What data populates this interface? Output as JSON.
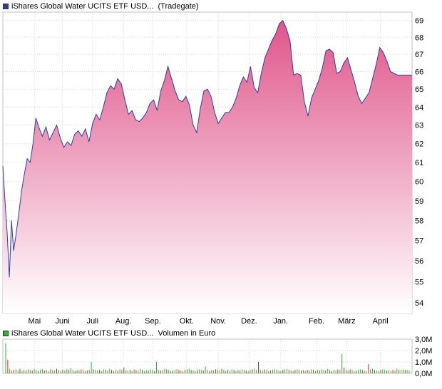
{
  "price_chart": {
    "legend_name": "iShares Global Water UCITS ETF USD...",
    "legend_source": "(Tradegate)",
    "series_color": "#2a3fa7",
    "fill_top_color": "#e0558a",
    "fill_bottom_color": "#ffffff"
  },
  "volume_chart": {
    "legend_name": "iShares Global Water UCITS ETF USD...",
    "legend_label": "Volumen in Euro",
    "up_color": "#2ab52a",
    "down_color": "#e02020"
  },
  "chart_data": [
    {
      "type": "area",
      "title": "",
      "series": [
        {
          "name": "iShares Global Water UCITS ETF USD...",
          "x": [
            0,
            3,
            6,
            9,
            12,
            15,
            18,
            22,
            26,
            30,
            34,
            38,
            42,
            46,
            50,
            55,
            60,
            65,
            70,
            75,
            80,
            85,
            90,
            95,
            100,
            105,
            110,
            115,
            120,
            125,
            130,
            135,
            140,
            145,
            150,
            155,
            160,
            165,
            170,
            175,
            180,
            185,
            190,
            195,
            200,
            205,
            210,
            215,
            220,
            225,
            230,
            235,
            240,
            245,
            250,
            255,
            260,
            265,
            270,
            275,
            280,
            285,
            290,
            295,
            300,
            305,
            310,
            315,
            320,
            325,
            330,
            335,
            340,
            345,
            350,
            355,
            360,
            365,
            370,
            375,
            380,
            385,
            390,
            395,
            400,
            405,
            410,
            415,
            420,
            425,
            430,
            435,
            440,
            445,
            450,
            455,
            460,
            465,
            470,
            475,
            480,
            485,
            490,
            495,
            500,
            505,
            510,
            515,
            520,
            525,
            530,
            535,
            540,
            545,
            550,
            555,
            560,
            565,
            570
          ],
          "values": [
            60.8,
            59.0,
            57.4,
            55.2,
            58.0,
            56.5,
            57.2,
            58.3,
            59.5,
            60.4,
            61.2,
            61.0,
            62.0,
            63.4,
            62.9,
            62.4,
            62.9,
            62.2,
            62.6,
            63.0,
            62.3,
            61.8,
            62.1,
            61.9,
            62.5,
            62.7,
            62.4,
            62.8,
            62.1,
            63.1,
            63.6,
            63.3,
            64.0,
            64.8,
            65.2,
            65.0,
            65.6,
            65.3,
            64.4,
            63.6,
            63.8,
            63.3,
            63.2,
            63.4,
            63.7,
            64.2,
            64.4,
            63.8,
            64.9,
            65.5,
            66.3,
            65.6,
            64.9,
            64.4,
            64.3,
            64.6,
            64.1,
            63.0,
            62.6,
            63.9,
            64.9,
            65.0,
            64.6,
            63.7,
            63.1,
            63.4,
            63.7,
            63.7,
            64.0,
            64.5,
            65.2,
            65.7,
            65.4,
            66.3,
            65.1,
            64.8,
            65.9,
            66.8,
            67.3,
            67.8,
            68.2,
            68.8,
            69.0,
            68.5,
            67.8,
            65.8,
            65.9,
            65.8,
            64.3,
            63.5,
            64.5,
            65.0,
            65.5,
            66.2,
            67.2,
            67.3,
            67.1,
            65.9,
            66.0,
            66.5,
            66.8,
            66.1,
            65.4,
            64.6,
            64.2,
            64.5,
            64.8,
            65.6,
            66.4,
            67.4,
            67.1,
            66.6,
            66.0,
            65.9,
            65.8,
            65.8,
            65.8,
            65.8,
            65.8
          ],
          "xlim": [
            0,
            570
          ]
        }
      ],
      "x_tick_labels": [
        "Mai",
        "Juni",
        "Juli",
        "Aug.",
        "Sep.",
        "Okt.",
        "Nov.",
        "Dez.",
        "Jan.",
        "Feb.",
        "März",
        "April"
      ],
      "x_tick_positions": [
        44,
        83,
        125,
        168,
        209,
        256,
        300,
        343,
        387,
        437,
        479,
        526
      ],
      "y_tick_labels": [
        "54",
        "55",
        "56",
        "57",
        "58",
        "59",
        "60",
        "61",
        "62",
        "63",
        "64",
        "65",
        "66",
        "67",
        "68",
        "69"
      ],
      "y_ticks": [
        54,
        55,
        56,
        57,
        58,
        59,
        60,
        61,
        62,
        63,
        64,
        65,
        66,
        67,
        68,
        69
      ],
      "ylim": [
        53.5,
        69.5
      ],
      "y_scale": "log",
      "grid": true
    },
    {
      "type": "bar",
      "title": "",
      "y_tick_labels": [
        "0,0M",
        "1,0M",
        "2,0M",
        "3,0M"
      ],
      "y_ticks": [
        0,
        1.0,
        2.0,
        3.0
      ],
      "ylim": [
        0,
        3.0
      ],
      "grid": true,
      "series": [
        {
          "name": "Volumen in Euro",
          "values_millions": [
            2.65,
            1.2,
            0.4,
            0.25,
            0.3,
            0.35,
            0.25,
            0.4,
            0.2,
            0.3,
            0.25,
            0.35,
            0.3,
            0.25,
            0.4,
            0.3,
            0.2,
            0.3,
            0.35,
            0.25,
            0.3,
            0.2,
            0.35,
            0.3,
            0.25,
            0.4,
            0.3,
            0.2,
            0.3,
            0.25,
            0.35,
            0.3,
            0.45,
            0.3,
            0.2,
            0.3,
            0.25,
            0.35,
            0.3,
            0.2,
            0.25,
            0.3,
            1.0,
            0.35,
            0.3,
            0.25,
            0.3,
            0.2,
            0.35,
            0.3,
            0.25,
            0.4,
            0.3,
            0.2,
            0.3,
            0.25,
            0.35,
            0.3,
            0.5,
            0.3,
            0.25,
            0.3,
            0.2,
            0.35,
            0.3,
            0.25,
            0.4,
            0.3,
            0.2,
            0.3,
            0.25,
            0.35,
            0.3,
            0.2,
            1.0,
            0.3,
            0.25,
            0.3,
            0.4,
            0.35,
            0.3,
            0.2,
            0.25,
            0.3,
            0.35,
            0.3,
            0.25,
            0.2,
            0.3,
            0.35,
            0.4,
            0.3,
            0.25,
            0.2,
            0.3,
            0.35,
            0.3,
            0.25,
            0.6,
            0.3,
            0.2,
            0.3,
            0.25,
            0.35,
            0.3,
            0.25,
            0.4,
            0.3,
            0.2,
            0.3,
            0.25,
            0.35,
            0.3,
            0.2,
            0.3,
            0.25,
            0.35,
            0.3,
            0.25,
            0.2,
            0.3,
            0.35,
            0.4,
            0.3,
            1.0,
            0.3,
            0.25,
            0.35,
            0.3,
            0.2,
            0.25,
            0.3,
            0.35,
            0.3,
            0.25,
            0.2,
            0.3,
            0.35,
            0.4,
            0.3,
            0.25,
            0.2,
            0.3,
            0.35,
            0.3,
            0.25,
            0.3,
            0.2,
            0.3,
            0.25,
            0.35,
            0.3,
            0.2,
            0.3,
            0.25,
            0.35,
            0.3,
            0.25,
            0.4,
            0.3,
            0.2,
            0.3,
            0.25,
            0.35,
            0.3,
            1.7,
            0.5,
            0.3,
            0.25,
            0.35,
            0.3,
            0.2,
            0.25,
            0.3,
            0.35,
            0.3,
            0.25,
            0.2,
            0.8,
            0.35,
            0.4,
            0.3,
            0.25,
            0.2,
            0.3,
            0.35,
            0.3,
            0.25,
            0.3,
            0.2,
            0.3,
            0.25,
            0.4,
            0.3,
            0.3,
            0.35,
            0.3,
            0.3,
            0.25
          ],
          "colors": "alternating up/down"
        }
      ]
    }
  ]
}
